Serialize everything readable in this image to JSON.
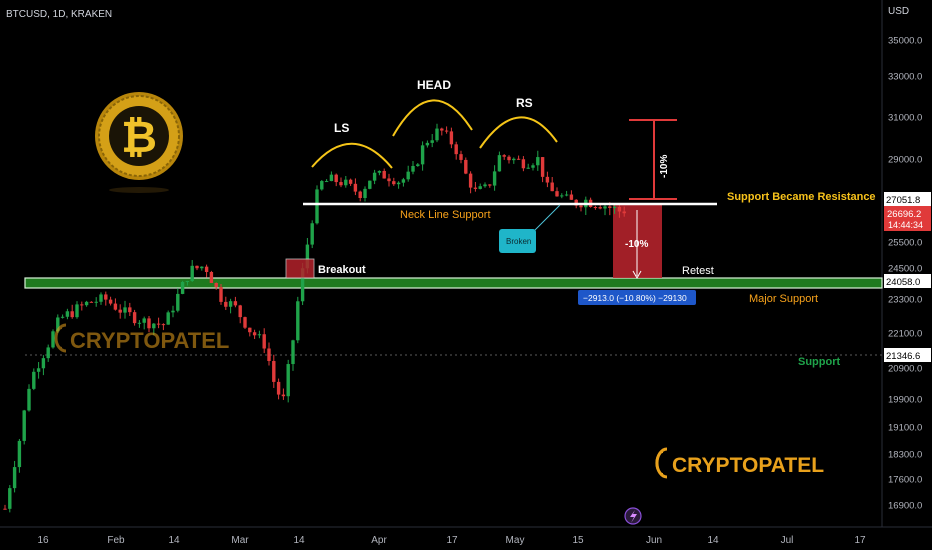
{
  "header": {
    "symbol": "BTCUSD, 1D, KRAKEN"
  },
  "axis": {
    "currency": "USD"
  },
  "colors": {
    "up": "#1fa34a",
    "down": "#e03a3a",
    "accent": "#f7a21b",
    "green_band": "#1f7a1f",
    "red_box": "#b3222b"
  },
  "chart_data": {
    "type": "candlestick",
    "ylim": [
      16500,
      36500
    ],
    "y_ticks": [
      35000,
      33000,
      31000,
      29000,
      27000,
      25500,
      24500,
      23300,
      22100,
      20900,
      19900,
      19100,
      18300,
      17600,
      16900
    ],
    "y_tick_labels": [
      "35000.0",
      "33000.0",
      "31000.0",
      "29000.0",
      "27000.0",
      "25500.0",
      "24500.0",
      "23300.0",
      "22100.0",
      "20900.0",
      "19900.0",
      "19100.0",
      "18300.0",
      "17600.0",
      "16900.0"
    ],
    "x_tick_labels": [
      "16",
      "Feb",
      "14",
      "Mar",
      "14",
      "Apr",
      "17",
      "May",
      "15",
      "Jun",
      "14",
      "Jul",
      "17"
    ],
    "price_labels": [
      {
        "value": 27051.8,
        "label": "27051.8"
      },
      {
        "value": 24058.0,
        "label": "24058.0"
      },
      {
        "value": 21346.6,
        "label": "21346.6"
      }
    ],
    "current_price": {
      "value": 26696.2,
      "label": "26696.2",
      "countdown": "14:44:34"
    }
  },
  "annotations": {
    "ls": "LS",
    "head": "HEAD",
    "rs": "RS",
    "neckline": "Neck Line Support",
    "support_resistance": "Support Became Resistance",
    "breakout": "Breakout",
    "broken": "Broken",
    "retest": "Retest",
    "major_support": "Major Support",
    "support": "Support",
    "drop_pct": "-10%",
    "rise_pct": "-10%",
    "measure": "−2913.0 (−10.80%) −29130"
  },
  "brand": {
    "name": "CRYPTOPATEL"
  }
}
